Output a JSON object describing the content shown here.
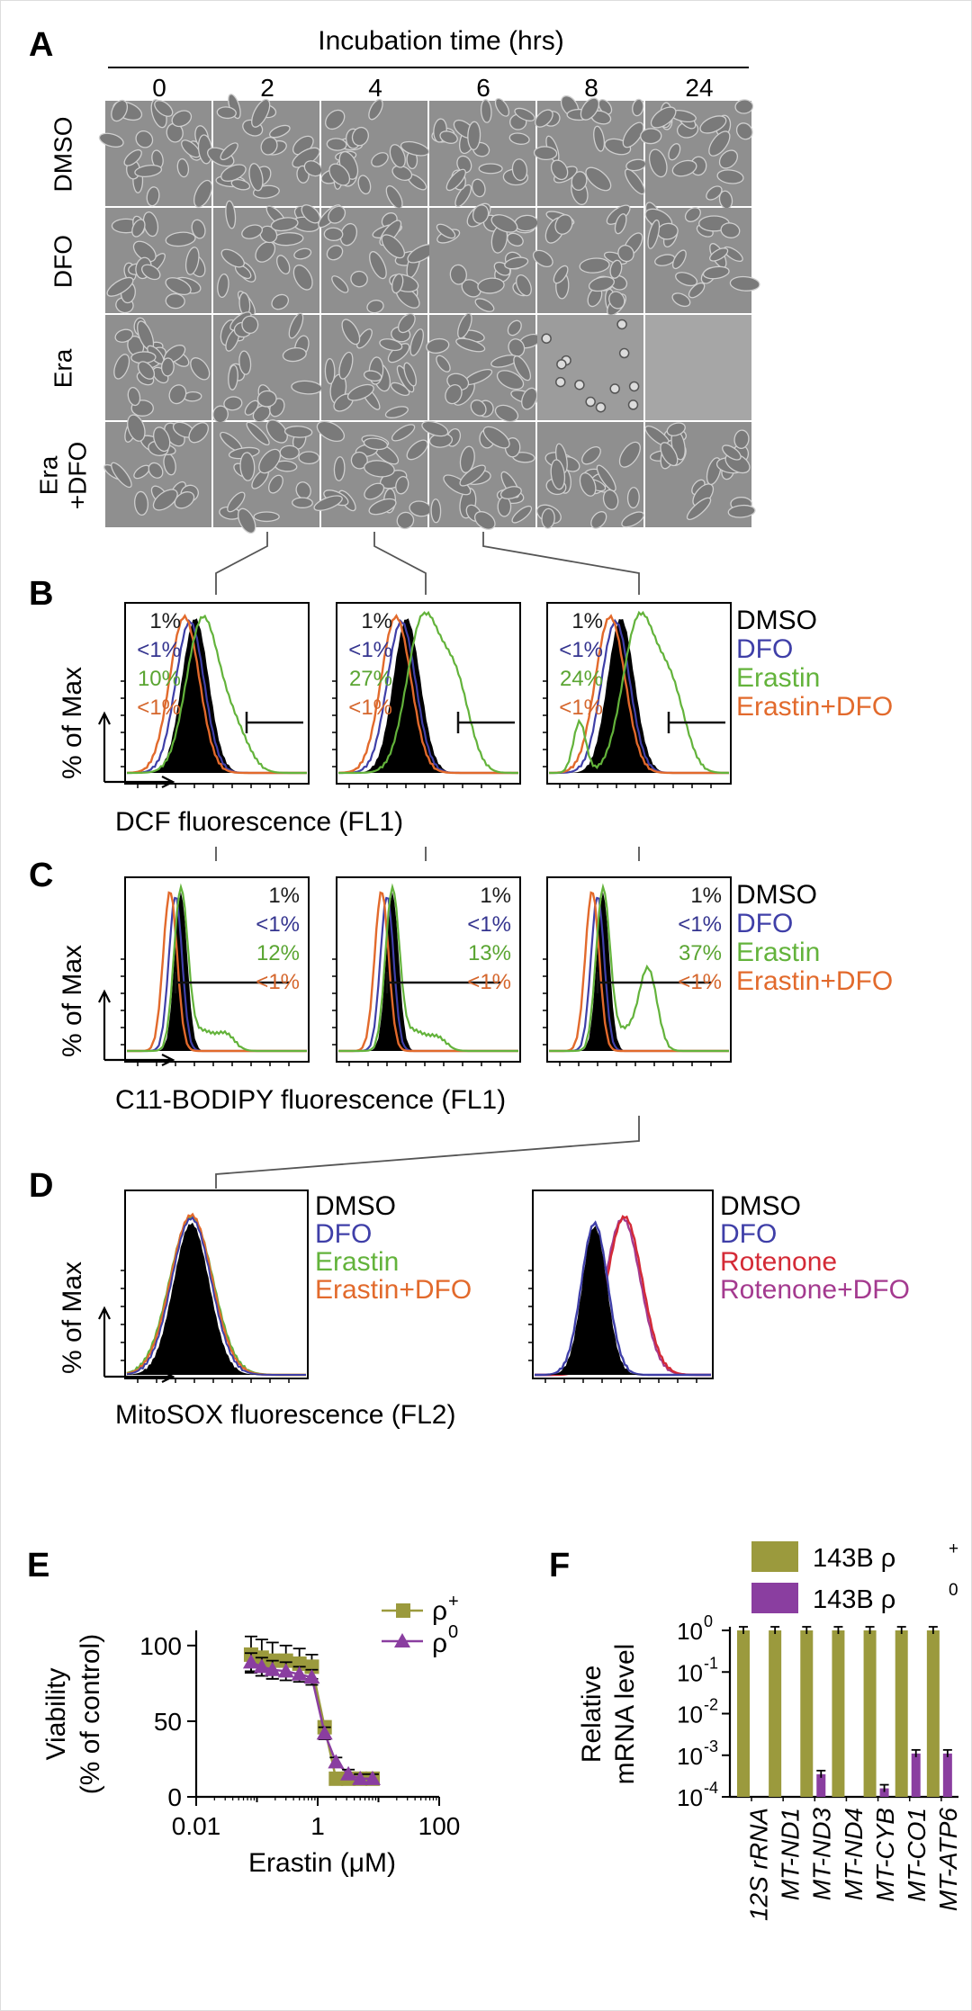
{
  "panels": {
    "A": "A",
    "B": "B",
    "C": "C",
    "D": "D",
    "E": "E",
    "F": "F"
  },
  "panel_a": {
    "title": "Incubation time (hrs)",
    "time_labels": [
      "0",
      "2",
      "4",
      "6",
      "8",
      "24"
    ],
    "row_labels": [
      {
        "lines": [
          "DMSO"
        ]
      },
      {
        "lines": [
          "DFO"
        ]
      },
      {
        "lines": [
          "Era"
        ]
      },
      {
        "lines": [
          "Era",
          "+DFO"
        ]
      }
    ],
    "dead_cells": "Era at 8 and 24 hrs",
    "cell_image_color": "#8f8f8f"
  },
  "colors": {
    "DMSO": "#000000",
    "DFO": "#3f3fa8",
    "Erastin": "#63b33b",
    "Erastin+DFO": "#e26a2c",
    "Rotenone": "#d42a36",
    "Rotenone+DFO": "#a43a8f",
    "olive": "#9b9a3d",
    "purple": "#8a3ea0",
    "pct_dmso": "#1a1a1a",
    "pct_dfo": "#34348f",
    "pct_erastin": "#5aa532",
    "pct_eradfo": "#d5662c"
  },
  "panel_b": {
    "ylabel": "% of Max",
    "xlabel": "DCF fluorescence (FL1)",
    "legend": [
      "DMSO",
      "DFO",
      "Erastin",
      "Erastin+DFO"
    ],
    "plots": [
      {
        "DMSO": "1%",
        "DFO": "<1%",
        "Erastin": "10%",
        "Erastin+DFO": "<1%"
      },
      {
        "DMSO": "1%",
        "DFO": "<1%",
        "Erastin": "27%",
        "Erastin+DFO": "<1%"
      },
      {
        "DMSO": "1%",
        "DFO": "<1%",
        "Erastin": "24%",
        "Erastin+DFO": "<1%"
      }
    ]
  },
  "panel_c": {
    "ylabel": "% of Max",
    "xlabel": "C11-BODIPY fluorescence (FL1)",
    "legend": [
      "DMSO",
      "DFO",
      "Erastin",
      "Erastin+DFO"
    ],
    "plots": [
      {
        "DMSO": "1%",
        "DFO": "<1%",
        "Erastin": "12%",
        "Erastin+DFO": "<1%"
      },
      {
        "DMSO": "1%",
        "DFO": "<1%",
        "Erastin": "13%",
        "Erastin+DFO": "<1%"
      },
      {
        "DMSO": "1%",
        "DFO": "<1%",
        "Erastin": "37%",
        "Erastin+DFO": "<1%"
      }
    ]
  },
  "panel_d": {
    "ylabel": "% of Max",
    "xlabel": "MitoSOX fluorescence (FL2)",
    "legend_left": [
      "DMSO",
      "DFO",
      "Erastin",
      "Erastin+DFO"
    ],
    "legend_right": [
      "DMSO",
      "DFO",
      "Rotenone",
      "Rotenone+DFO"
    ]
  },
  "chart_data": [
    {
      "type": "line",
      "panel": "E",
      "xlabel": "Erastin (μM)",
      "ylabel": "Viability (% of control)",
      "x_scale": "log",
      "xlim": [
        0.01,
        100
      ],
      "ylim": [
        0,
        110
      ],
      "xticks": [
        "0.01",
        "1",
        "100"
      ],
      "yticks": [
        "0",
        "50",
        "100"
      ],
      "legend_position": "top-right",
      "x": [
        0.08,
        0.12,
        0.18,
        0.3,
        0.5,
        0.8,
        1.3,
        2.0,
        3.2,
        5.0,
        8.0
      ],
      "series": [
        {
          "name": "ρ+",
          "marker": "square",
          "color": "#9b9a3d",
          "values": [
            94,
            92,
            90,
            90,
            88,
            86,
            46,
            12,
            12,
            12,
            12
          ],
          "errors": [
            12,
            12,
            12,
            10,
            10,
            8,
            4,
            3,
            3,
            3,
            3
          ]
        },
        {
          "name": "ρ0",
          "marker": "triangle",
          "color": "#8a3ea0",
          "values": [
            89,
            86,
            84,
            83,
            81,
            79,
            42,
            23,
            15,
            12,
            12
          ],
          "errors": [
            6,
            6,
            6,
            6,
            5,
            5,
            4,
            3,
            3,
            3,
            3
          ]
        }
      ]
    },
    {
      "type": "bar",
      "panel": "F",
      "ylabel": "Relative mRNA level",
      "y_scale": "log",
      "ylim": [
        0.0001,
        1
      ],
      "ytick_exponents": [
        "0",
        "-1",
        "-2",
        "-3",
        "-4"
      ],
      "categories": [
        "12S rRNA",
        "MT-ND1",
        "MT-ND3",
        "MT-ND4",
        "MT-CYB",
        "MT-CO1",
        "MT-ATP6"
      ],
      "series": [
        {
          "name": "143B ρ+",
          "color": "#9b9a3d",
          "values": [
            1,
            1,
            1,
            1,
            1,
            1,
            1
          ]
        },
        {
          "name": "143B ρ0",
          "color": "#8a3ea0",
          "values": [
            null,
            null,
            0.00035,
            null,
            0.00016,
            0.0011,
            0.0011
          ]
        }
      ]
    }
  ]
}
